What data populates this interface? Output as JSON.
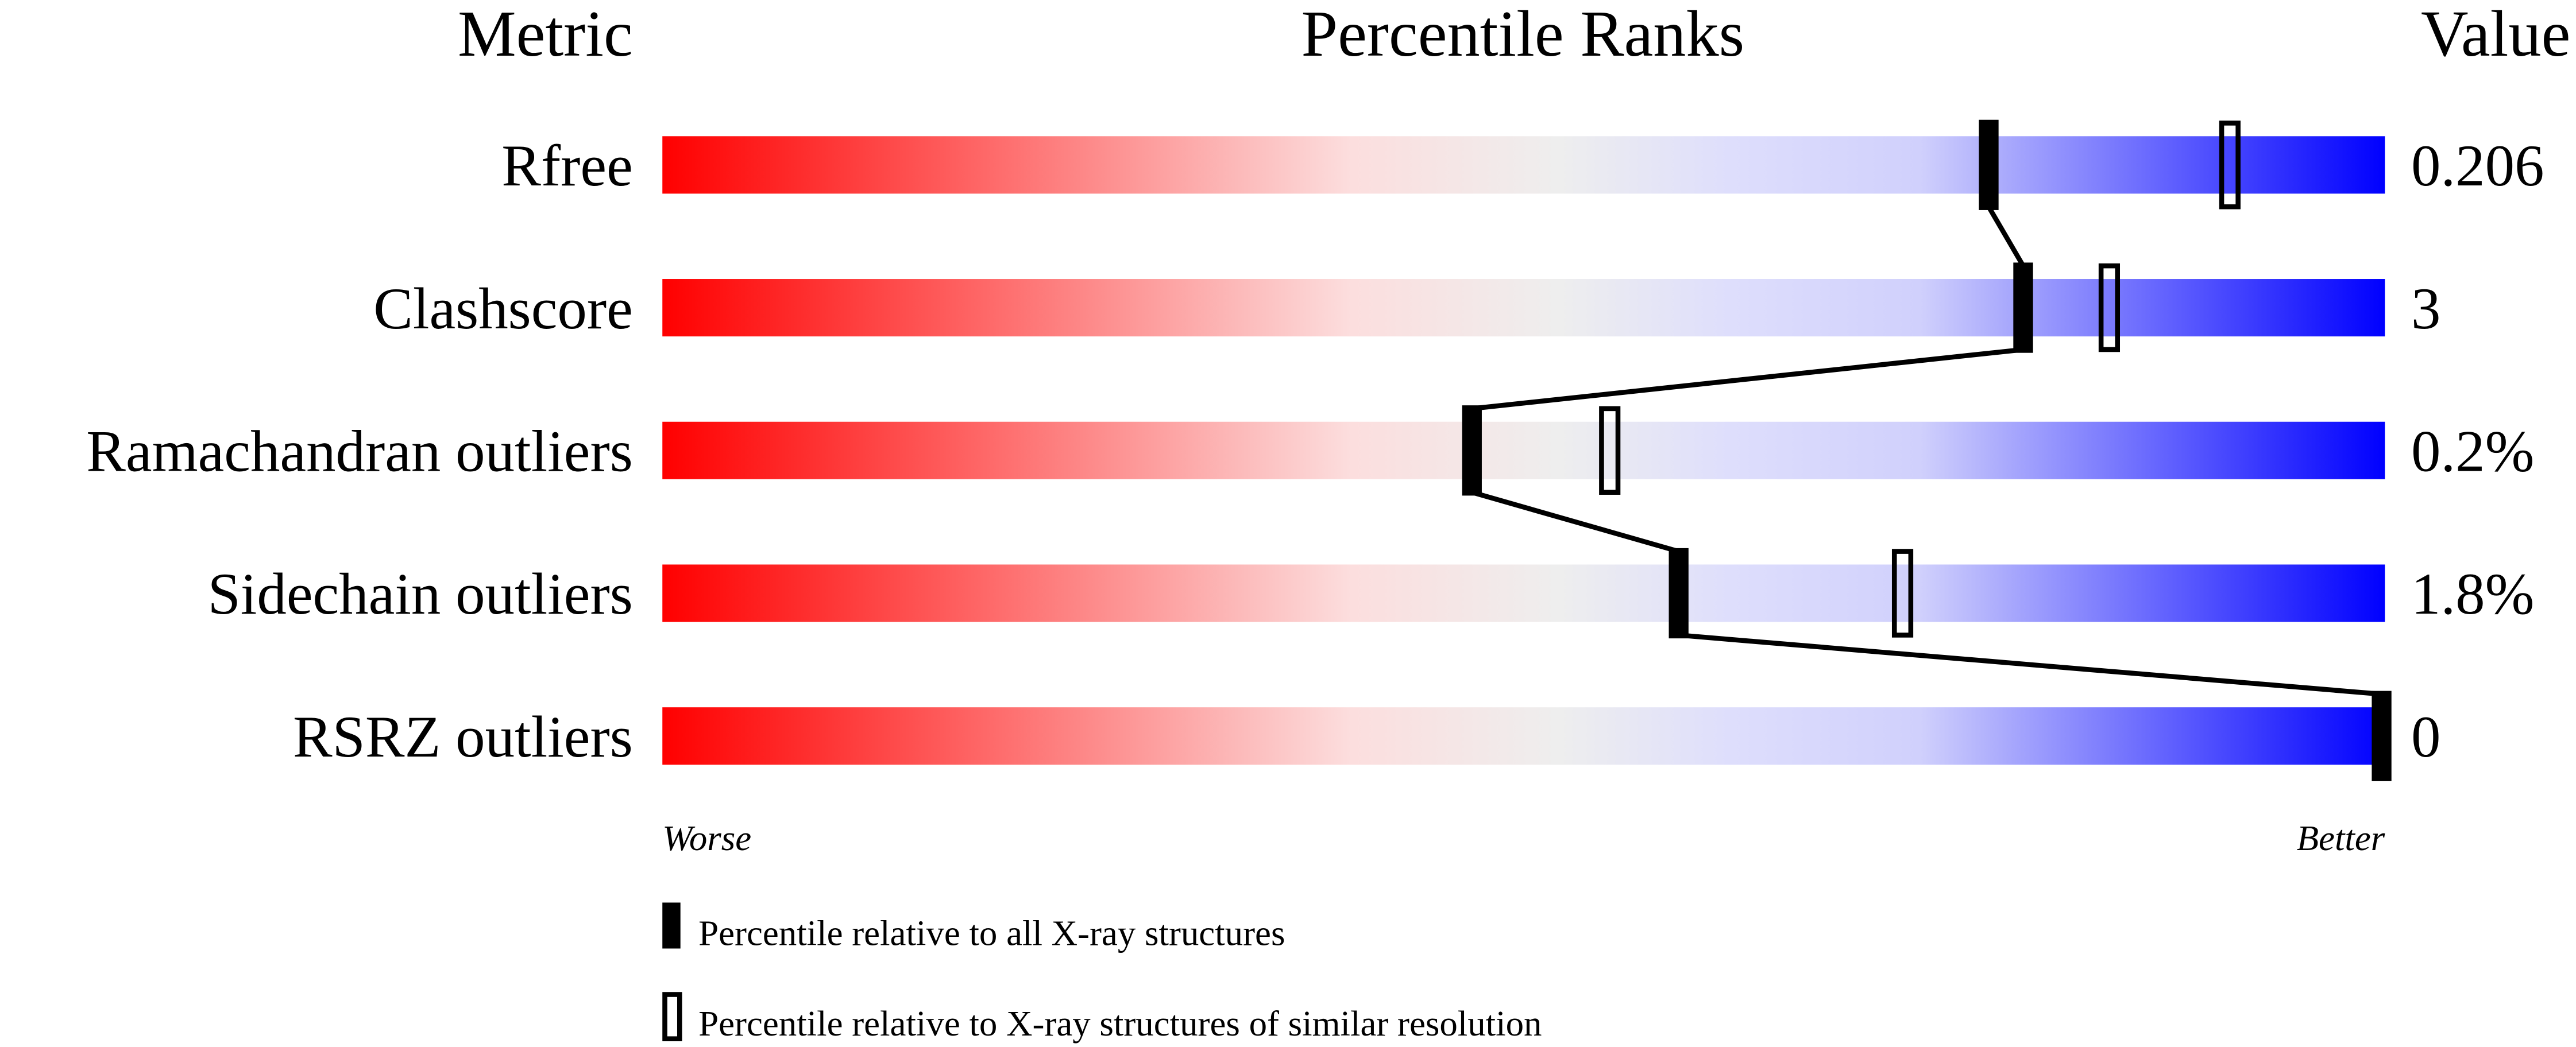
{
  "chart_data": {
    "type": "percentile-slider",
    "headers": {
      "metric": "Metric",
      "percentile": "Percentile Ranks",
      "value": "Value"
    },
    "xlim": [
      0,
      100
    ],
    "axis_labels": {
      "left": "Worse",
      "right": "Better"
    },
    "gradient_colors": [
      "#ff0000",
      "#fcdede",
      "#eeeeee",
      "#dedefc",
      "#d0d0fc",
      "#0000ff"
    ],
    "metrics": [
      {
        "name": "Rfree",
        "value": "0.206",
        "percentile_all": 77,
        "percentile_similar": 91
      },
      {
        "name": "Clashscore",
        "value": "3",
        "percentile_all": 79,
        "percentile_similar": 84
      },
      {
        "name": "Ramachandran outliers",
        "value": "0.2%",
        "percentile_all": 47,
        "percentile_similar": 55
      },
      {
        "name": "Sidechain outliers",
        "value": "1.8%",
        "percentile_all": 59,
        "percentile_similar": 72
      },
      {
        "name": "RSRZ outliers",
        "value": "0",
        "percentile_all": 100,
        "percentile_similar": null
      }
    ],
    "legend": [
      {
        "marker": "filled",
        "label": "Percentile relative to all X-ray structures"
      },
      {
        "marker": "outline",
        "label": "Percentile relative to X-ray structures of similar resolution"
      }
    ]
  }
}
